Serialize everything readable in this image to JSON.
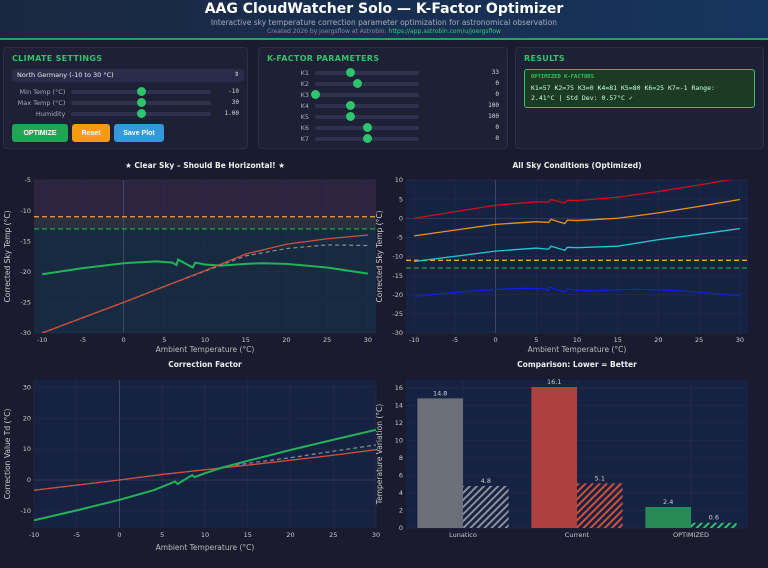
{
  "header": {
    "title": "AAG CloudWatcher Solo — K-Factor Optimizer",
    "subtitle": "Interactive sky temperature correction parameter optimization for astronomical observation",
    "credit": "Created 2026 by joergsflow at Astrobin:",
    "link": "https://app.astrobin.com/u/joergsflow"
  },
  "climate": {
    "title": "CLIMATE SETTINGS",
    "region": "North Germany (-10 to 30 °C)",
    "sliders": [
      {
        "label": "Min Temp (°C)",
        "value": "-10",
        "fraction": 0.5
      },
      {
        "label": "Max Temp (°C)",
        "value": "30",
        "fraction": 0.5
      },
      {
        "label": "Humidity",
        "value": "1.00",
        "fraction": 0.5
      }
    ],
    "buttons": {
      "optimize": "OPTIMIZE",
      "reset": "Reset",
      "save": "Save Plot"
    }
  },
  "kfactors": {
    "title": "K-FACTOR PARAMETERS",
    "sliders": [
      {
        "label": "K1",
        "value": "33",
        "fraction": 0.34
      },
      {
        "label": "K2",
        "value": "0",
        "fraction": 0.4
      },
      {
        "label": "K3",
        "value": "0",
        "fraction": 0.0
      },
      {
        "label": "K4",
        "value": "100",
        "fraction": 0.34
      },
      {
        "label": "K5",
        "value": "100",
        "fraction": 0.34
      },
      {
        "label": "K6",
        "value": "0",
        "fraction": 0.5
      },
      {
        "label": "K7",
        "value": "0",
        "fraction": 0.5
      }
    ]
  },
  "results": {
    "title": "RESULTS",
    "box_title": "OPTIMIZED K-FACTORS",
    "line1": "K1=57 K2=75 K3=0 K4=81 K5=80 K6=25 K7=-1 Range:",
    "line2": "2.41°C | Std Dev: 0.57°C ✓"
  },
  "colors": {
    "accent": "#2ec46b",
    "orange": "#f5a623",
    "blue": "#3498db",
    "red": "#c0392b"
  },
  "chart_data": [
    {
      "type": "line",
      "title": "★ Clear Sky – Should Be Horizontal! ★",
      "xlabel": "Ambient Temperature (°C)",
      "ylabel": "Corrected Sky Temp (°C)",
      "xlim": [
        -11,
        31
      ],
      "ylim": [
        -30,
        -5
      ],
      "xticks": [
        -10,
        -5,
        0,
        5,
        10,
        15,
        20,
        25,
        30
      ],
      "yticks": [
        -30,
        -25,
        -20,
        -15,
        -10,
        -5
      ],
      "grid": true,
      "bands": [
        {
          "from": -11,
          "to": -5,
          "color": "#2e2440"
        },
        {
          "from": -13,
          "to": -11,
          "color": "#2a3040"
        },
        {
          "from": -30,
          "to": -13,
          "color": "#172a40"
        }
      ],
      "hlines": [
        {
          "y": -11,
          "color": "#f5a623"
        },
        {
          "y": -13,
          "color": "#1e9e3e"
        }
      ],
      "series": [
        {
          "color": "#22b35a",
          "width": 2,
          "x": [
            -10,
            -5,
            0,
            4,
            6,
            6.5,
            6.7,
            8.5,
            8.8,
            10,
            12,
            15,
            17,
            20,
            25,
            30
          ],
          "y": [
            -20.4,
            -19.4,
            -18.6,
            -18.3,
            -18.5,
            -18.9,
            -18.0,
            -19.3,
            -18.5,
            -18.8,
            -19.0,
            -18.7,
            -18.6,
            -18.7,
            -19.3,
            -20.3
          ]
        },
        {
          "color": "#8a8f9a",
          "width": 1.2,
          "dash": "4,3",
          "x": [
            -10,
            0,
            5,
            10,
            15,
            20,
            25,
            30
          ],
          "y": [
            -30,
            -25,
            -22.4,
            -19.9,
            -17.4,
            -16.2,
            -15.6,
            -15.7
          ]
        },
        {
          "color": "#d0503a",
          "width": 1.3,
          "x": [
            -10,
            0,
            5,
            10,
            15,
            20,
            25,
            30
          ],
          "y": [
            -30,
            -25,
            -22.4,
            -19.8,
            -17.1,
            -15.5,
            -14.6,
            -14.0
          ]
        }
      ]
    },
    {
      "type": "line",
      "title": "All Sky Conditions (Optimized)",
      "xlabel": "Ambient Temperature (°C)",
      "ylabel": "Corrected Sky Temp (°C)",
      "xlim": [
        -11,
        31
      ],
      "ylim": [
        -30,
        10
      ],
      "xticks": [
        -10,
        -5,
        0,
        5,
        10,
        15,
        20,
        25,
        30
      ],
      "yticks": [
        -30,
        -25,
        -20,
        -15,
        -10,
        -5,
        0,
        5,
        10
      ],
      "grid": true,
      "hlines": [
        {
          "y": -11,
          "color": "#f5a623"
        },
        {
          "y": -13,
          "color": "#1e9e3e"
        }
      ],
      "series": [
        {
          "color": "#d0101a",
          "width": 1.3,
          "x": [
            -10,
            0,
            5,
            6.5,
            6.8,
            8.5,
            8.8,
            10,
            15,
            20,
            25,
            30
          ],
          "y": [
            0,
            3.4,
            4.3,
            4.2,
            4.9,
            4.0,
            4.7,
            4.6,
            5.5,
            7,
            8.7,
            10.5
          ]
        },
        {
          "color": "#e8941a",
          "width": 1.3,
          "x": [
            -10,
            0,
            5,
            6.5,
            6.8,
            8.5,
            8.8,
            10,
            15,
            20,
            25,
            30
          ],
          "y": [
            -4.6,
            -1.6,
            -0.9,
            -1.1,
            -0.3,
            -1.4,
            -0.5,
            -0.6,
            0,
            1.4,
            3.1,
            4.9
          ]
        },
        {
          "color": "#1ec8d8",
          "width": 1.3,
          "x": [
            -10,
            0,
            5,
            6.5,
            6.8,
            8.5,
            8.8,
            10,
            15,
            20,
            25,
            30
          ],
          "y": [
            -11.3,
            -8.6,
            -7.8,
            -8.1,
            -7.3,
            -8.4,
            -7.6,
            -7.7,
            -7.3,
            -5.6,
            -4.2,
            -2.7
          ]
        },
        {
          "color": "#1020e0",
          "width": 1.3,
          "x": [
            -10,
            -5,
            0,
            4,
            6,
            6.5,
            6.7,
            8.5,
            8.8,
            10,
            12,
            15,
            17,
            20,
            25,
            30
          ],
          "y": [
            -20.4,
            -19.4,
            -18.6,
            -18.3,
            -18.5,
            -18.9,
            -18.0,
            -19.3,
            -18.5,
            -18.8,
            -19.0,
            -18.7,
            -18.6,
            -18.7,
            -19.3,
            -20.3
          ]
        }
      ]
    },
    {
      "type": "line",
      "title": "Correction Factor",
      "xlabel": "Ambient Temperature (°C)",
      "ylabel": "Correction Value Td (°C)",
      "xlim": [
        -10,
        30
      ],
      "ylim": [
        -15.5,
        32.3
      ],
      "xticks": [
        -10,
        -5,
        0,
        5,
        10,
        15,
        20,
        25,
        30
      ],
      "yticks": [
        -10,
        0,
        10,
        20,
        30
      ],
      "grid": true,
      "series": [
        {
          "color": "#0d1830",
          "width": 0.8,
          "dash": "1,2",
          "x": [
            -10,
            30
          ],
          "y": [
            -10,
            30
          ]
        },
        {
          "color": "#8a8f9a",
          "width": 1.2,
          "dash": "4,3",
          "x": [
            -10,
            0,
            5,
            10,
            12,
            15,
            20,
            25,
            30
          ],
          "y": [
            -3.3,
            0,
            1.8,
            3.3,
            3.9,
            5.4,
            7.2,
            9.3,
            11.3
          ]
        },
        {
          "color": "#d0503a",
          "width": 1.3,
          "x": [
            -10,
            0,
            5,
            10,
            15,
            20,
            25,
            30
          ],
          "y": [
            -3.3,
            0,
            1.8,
            3.3,
            4.8,
            6.4,
            8,
            9.8
          ]
        },
        {
          "color": "#22b35a",
          "width": 2,
          "x": [
            -10,
            -5,
            0,
            4,
            6.5,
            6.8,
            8.5,
            8.8,
            10,
            12,
            15,
            20,
            25,
            30
          ],
          "y": [
            -13,
            -9.8,
            -6.4,
            -3.3,
            -0.5,
            -1.3,
            1.6,
            0.9,
            2.2,
            4,
            6.2,
            9.7,
            13,
            16.2
          ]
        }
      ]
    },
    {
      "type": "bar",
      "title": "Comparison: Lower = Better",
      "ylabel": "Temperature Variation (°C)",
      "ylim": [
        0,
        16.9
      ],
      "yticks": [
        0,
        2,
        4,
        6,
        8,
        10,
        12,
        14,
        16
      ],
      "grid": true,
      "categories": [
        "Lunatico",
        "Current",
        "OPTIMIZED"
      ],
      "series": [
        {
          "values": [
            14.8,
            16.1,
            2.4
          ],
          "labels": [
            "14.8",
            "16.1",
            "2.4"
          ],
          "colors": [
            "#6b6f78",
            "#b0403e",
            "#258a55"
          ],
          "hatched": false
        },
        {
          "values": [
            4.8,
            5.1,
            0.6
          ],
          "labels": [
            "4.8",
            "5.1",
            "0.6"
          ],
          "colors": [
            "#8a8f9a",
            "#d0503a",
            "#2ec46b"
          ],
          "hatched": true
        }
      ]
    }
  ]
}
